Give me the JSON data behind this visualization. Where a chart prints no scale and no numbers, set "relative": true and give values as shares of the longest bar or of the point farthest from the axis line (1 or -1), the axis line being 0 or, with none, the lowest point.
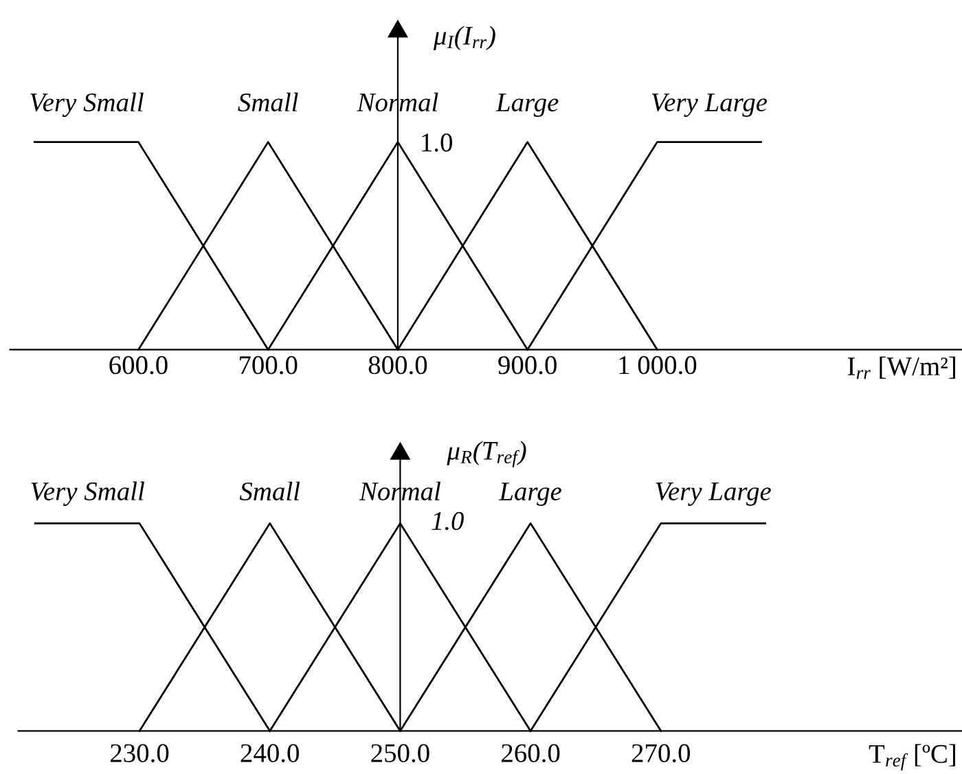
{
  "chart_data": [
    {
      "type": "line",
      "relative": true,
      "ylabel": "μ$_{I}$(I$_{rr}$)",
      "xlabel": "I$_{rr}$ [W/m²]",
      "annotations": [
        {
          "text": "1.0",
          "x": 800,
          "y": 1
        }
      ],
      "series": [
        {
          "name": "Very Small",
          "color": "#000000",
          "x": [
            520,
            600,
            700
          ],
          "values": [
            1,
            1,
            0
          ]
        },
        {
          "name": "Small",
          "color": "#000000",
          "x": [
            600,
            700,
            800
          ],
          "values": [
            0,
            1,
            0
          ]
        },
        {
          "name": "Normal",
          "color": "#000000",
          "x": [
            700,
            800,
            900
          ],
          "values": [
            0,
            1,
            0
          ]
        },
        {
          "name": "Large",
          "color": "#000000",
          "x": [
            800,
            900,
            1000
          ],
          "values": [
            0,
            1,
            0
          ]
        },
        {
          "name": "Very Large",
          "color": "#000000",
          "x": [
            900,
            1000,
            1080
          ],
          "values": [
            0,
            1,
            1
          ]
        }
      ],
      "xlim": [
        501,
        1235
      ],
      "xticks": [
        {
          "value": 600,
          "label": "600.0"
        },
        {
          "value": 700,
          "label": "700.0"
        },
        {
          "value": 800,
          "label": "800.0"
        },
        {
          "value": 900,
          "label": "900.0"
        },
        {
          "value": 1000,
          "label": "1 000.0"
        }
      ],
      "grid": false,
      "legend": false,
      "marker": "none",
      "line_style": "solid"
    },
    {
      "type": "line",
      "relative": true,
      "ylabel": "μ$_{R}$(T$_{ref}$)",
      "xlabel": "T$_{ref}$ [ºC]",
      "annotations": [
        {
          "text": "1.0",
          "x": 250,
          "y": 1
        }
      ],
      "series": [
        {
          "name": "Very Small",
          "color": "#000000",
          "x": [
            222,
            230,
            240
          ],
          "values": [
            1,
            1,
            0
          ]
        },
        {
          "name": "Small",
          "color": "#000000",
          "x": [
            230,
            240,
            250
          ],
          "values": [
            0,
            1,
            0
          ]
        },
        {
          "name": "Normal",
          "color": "#000000",
          "x": [
            240,
            250,
            260
          ],
          "values": [
            0,
            1,
            0
          ]
        },
        {
          "name": "Large",
          "color": "#000000",
          "x": [
            250,
            260,
            270
          ],
          "values": [
            0,
            1,
            0
          ]
        },
        {
          "name": "Very Large",
          "color": "#000000",
          "x": [
            260,
            270,
            278
          ],
          "values": [
            0,
            1,
            1
          ]
        }
      ],
      "xlim": [
        220.7,
        293.1
      ],
      "xticks": [
        {
          "value": 230,
          "label": "230.0"
        },
        {
          "value": 240,
          "label": "240.0"
        },
        {
          "value": 250,
          "label": "250.0"
        },
        {
          "value": 260,
          "label": "260.0"
        },
        {
          "value": 270,
          "label": "270.0"
        }
      ],
      "grid": false,
      "legend": false,
      "marker": "none",
      "line_style": "solid"
    }
  ]
}
